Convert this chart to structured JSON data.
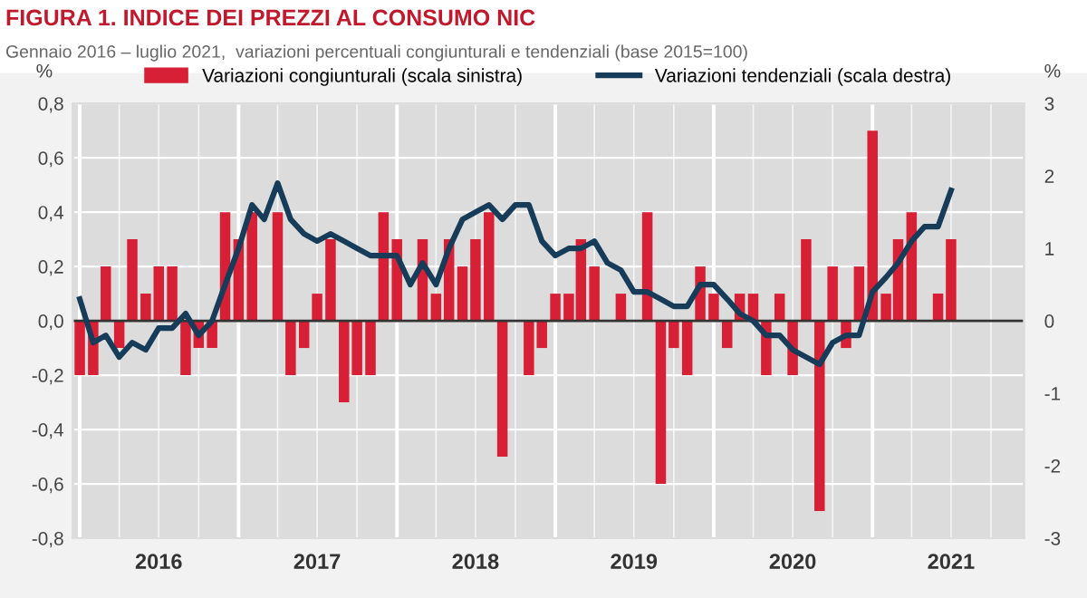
{
  "chart_data": {
    "type": "bar",
    "title": "FIGURA 1. INDICE DEI PREZZI AL CONSUMO NIC",
    "subtitle": "Gennaio 2016 – luglio 2021,  variazioni percentuali congiunturali e tendenziali (base 2015=100)",
    "ylabel": "%",
    "y2label": "%",
    "x": [
      "2016-01",
      "2016-02",
      "2016-03",
      "2016-04",
      "2016-05",
      "2016-06",
      "2016-07",
      "2016-08",
      "2016-09",
      "2016-10",
      "2016-11",
      "2016-12",
      "2017-01",
      "2017-02",
      "2017-03",
      "2017-04",
      "2017-05",
      "2017-06",
      "2017-07",
      "2017-08",
      "2017-09",
      "2017-10",
      "2017-11",
      "2017-12",
      "2018-01",
      "2018-02",
      "2018-03",
      "2018-04",
      "2018-05",
      "2018-06",
      "2018-07",
      "2018-08",
      "2018-09",
      "2018-10",
      "2018-11",
      "2018-12",
      "2019-01",
      "2019-02",
      "2019-03",
      "2019-04",
      "2019-05",
      "2019-06",
      "2019-07",
      "2019-08",
      "2019-09",
      "2019-10",
      "2019-11",
      "2019-12",
      "2020-01",
      "2020-02",
      "2020-03",
      "2020-04",
      "2020-05",
      "2020-06",
      "2020-07",
      "2020-08",
      "2020-09",
      "2020-10",
      "2020-11",
      "2020-12",
      "2021-01",
      "2021-02",
      "2021-03",
      "2021-04",
      "2021-05",
      "2021-06",
      "2021-07"
    ],
    "series": [
      {
        "name": "Variazioni congiunturali (scala sinistra)",
        "color": "#d71f35",
        "values": [
          -0.2,
          -0.2,
          0.2,
          -0.1,
          0.3,
          0.1,
          0.2,
          0.2,
          -0.2,
          -0.1,
          -0.1,
          0.4,
          0.3,
          0.4,
          0.0,
          0.4,
          -0.2,
          -0.1,
          0.1,
          0.3,
          -0.3,
          -0.2,
          -0.2,
          0.4,
          0.3,
          0.0,
          0.3,
          0.1,
          0.3,
          0.2,
          0.3,
          0.4,
          -0.5,
          0.0,
          -0.2,
          -0.1,
          0.1,
          0.1,
          0.3,
          0.2,
          0.0,
          0.1,
          0.0,
          0.4,
          -0.6,
          -0.1,
          -0.2,
          0.2,
          0.1,
          -0.1,
          0.1,
          0.1,
          -0.2,
          0.1,
          -0.2,
          0.3,
          -0.7,
          0.2,
          -0.1,
          0.2,
          0.7,
          0.1,
          0.3,
          0.4,
          0.0,
          0.1,
          0.3
        ]
      },
      {
        "name": "Variazioni tendenziali (scala destra)",
        "type": "line",
        "axis": "y2",
        "color": "#173c5a",
        "values": [
          0.3,
          -0.3,
          -0.2,
          -0.5,
          -0.3,
          -0.4,
          -0.1,
          -0.1,
          0.1,
          -0.2,
          0.0,
          0.5,
          1.0,
          1.6,
          1.4,
          1.9,
          1.4,
          1.2,
          1.1,
          1.2,
          1.1,
          1.0,
          0.9,
          0.9,
          0.9,
          0.5,
          0.8,
          0.5,
          1.0,
          1.4,
          1.5,
          1.6,
          1.4,
          1.6,
          1.6,
          1.1,
          0.9,
          1.0,
          1.0,
          1.1,
          0.8,
          0.7,
          0.4,
          0.4,
          0.3,
          0.2,
          0.2,
          0.5,
          0.5,
          0.3,
          0.1,
          0.0,
          -0.2,
          -0.2,
          -0.4,
          -0.5,
          -0.6,
          -0.3,
          -0.2,
          -0.2,
          0.4,
          0.6,
          0.8,
          1.1,
          1.3,
          1.3,
          1.8
        ]
      }
    ],
    "xlim": [
      "2015-12-16",
      "2021-12-16"
    ],
    "xticks": [
      {
        "value": "2016-07-01",
        "label": "2016"
      },
      {
        "value": "2017-07-01",
        "label": "2017"
      },
      {
        "value": "2018-07-01",
        "label": "2018"
      },
      {
        "value": "2019-07-01",
        "label": "2019"
      },
      {
        "value": "2020-07-01",
        "label": "2020"
      },
      {
        "value": "2021-07-01",
        "label": "2021"
      }
    ],
    "ylim": [
      -0.8,
      0.8
    ],
    "yticks": [
      {
        "value": -0.8,
        "label": "-0,8"
      },
      {
        "value": -0.6,
        "label": "-0,6"
      },
      {
        "value": -0.4,
        "label": "-0,4"
      },
      {
        "value": -0.2,
        "label": "-0,2"
      },
      {
        "value": 0.0,
        "label": "0,0"
      },
      {
        "value": 0.2,
        "label": "0,2"
      },
      {
        "value": 0.4,
        "label": "0,4"
      },
      {
        "value": 0.6,
        "label": "0,6"
      },
      {
        "value": 0.8,
        "label": "0,8"
      }
    ],
    "y2lim": [
      -3,
      3
    ],
    "y2ticks": [
      -3,
      -2,
      -1,
      0,
      1,
      2,
      3
    ],
    "grid": true,
    "legend": "top",
    "marker": "none",
    "line_style": "solid"
  }
}
